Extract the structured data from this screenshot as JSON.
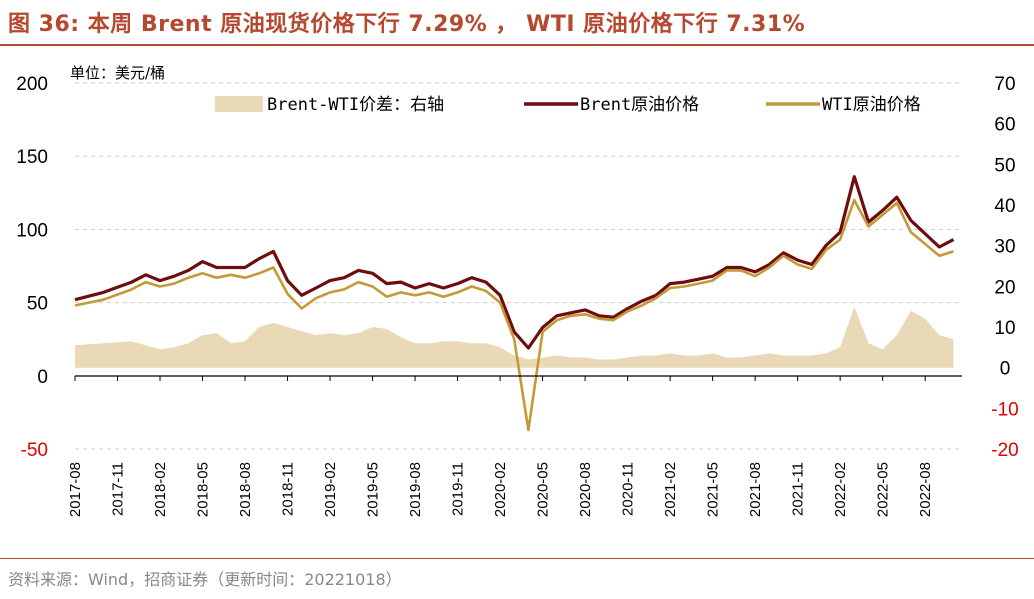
{
  "header": {
    "title": "图 36:  本周 Brent 原油现货价格下行 7.29% ， WTI 原油价格下行 7.31%"
  },
  "footer": {
    "source": "资料来源：Wind，招商证券（更新时间：20221018）"
  },
  "chart_data": {
    "type": "line",
    "unit_label": "单位：美元/桶",
    "x_tick_labels": [
      "2017-08",
      "2017-11",
      "2018-02",
      "2018-05",
      "2018-08",
      "2018-11",
      "2019-02",
      "2019-05",
      "2019-08",
      "2019-11",
      "2020-02",
      "2020-05",
      "2020-08",
      "2020-11",
      "2021-02",
      "2021-05",
      "2021-08",
      "2021-11",
      "2022-02",
      "2022-05",
      "2022-08"
    ],
    "y_left": {
      "ylim": [
        -50,
        200
      ],
      "ticks": [
        "200",
        "150",
        "100",
        "50",
        "0",
        "-50"
      ]
    },
    "y_right": {
      "ylim": [
        -20,
        70
      ],
      "ticks": [
        "70",
        "60",
        "50",
        "40",
        "30",
        "20",
        "10",
        "0",
        "-10",
        "-20"
      ]
    },
    "legend_position": "top",
    "grid": "horizontal dashed",
    "colors": {
      "brent": "#6e0d0d",
      "wti": "#c49a38",
      "spread": "#e9d9b6",
      "negative_tick": "#e00000"
    },
    "series": [
      {
        "name": "Brent原油价格",
        "axis": "left",
        "points": [
          [
            "2017-08",
            52
          ],
          [
            "2017-10",
            57
          ],
          [
            "2017-12",
            64
          ],
          [
            "2018-01",
            69
          ],
          [
            "2018-02",
            65
          ],
          [
            "2018-03",
            68
          ],
          [
            "2018-04",
            72
          ],
          [
            "2018-05",
            78
          ],
          [
            "2018-06",
            74
          ],
          [
            "2018-07",
            74
          ],
          [
            "2018-08",
            74
          ],
          [
            "2018-09",
            80
          ],
          [
            "2018-10",
            85
          ],
          [
            "2018-11",
            65
          ],
          [
            "2018-12",
            55
          ],
          [
            "2019-01",
            60
          ],
          [
            "2019-02",
            65
          ],
          [
            "2019-03",
            67
          ],
          [
            "2019-04",
            72
          ],
          [
            "2019-05",
            70
          ],
          [
            "2019-06",
            63
          ],
          [
            "2019-07",
            64
          ],
          [
            "2019-08",
            60
          ],
          [
            "2019-09",
            63
          ],
          [
            "2019-10",
            60
          ],
          [
            "2019-11",
            63
          ],
          [
            "2019-12",
            67
          ],
          [
            "2020-01",
            64
          ],
          [
            "2020-02",
            55
          ],
          [
            "2020-03",
            30
          ],
          [
            "2020-04",
            19
          ],
          [
            "2020-05",
            33
          ],
          [
            "2020-06",
            41
          ],
          [
            "2020-07",
            43
          ],
          [
            "2020-08",
            45
          ],
          [
            "2020-09",
            41
          ],
          [
            "2020-10",
            40
          ],
          [
            "2020-11",
            46
          ],
          [
            "2020-12",
            51
          ],
          [
            "2021-01",
            55
          ],
          [
            "2021-02",
            63
          ],
          [
            "2021-03",
            64
          ],
          [
            "2021-04",
            66
          ],
          [
            "2021-05",
            68
          ],
          [
            "2021-06",
            74
          ],
          [
            "2021-07",
            74
          ],
          [
            "2021-08",
            71
          ],
          [
            "2021-09",
            76
          ],
          [
            "2021-10",
            84
          ],
          [
            "2021-11",
            79
          ],
          [
            "2021-12",
            76
          ],
          [
            "2022-01",
            89
          ],
          [
            "2022-02",
            98
          ],
          [
            "2022-03",
            136
          ],
          [
            "2022-04",
            105
          ],
          [
            "2022-05",
            113
          ],
          [
            "2022-06",
            122
          ],
          [
            "2022-07",
            106
          ],
          [
            "2022-08",
            97
          ],
          [
            "2022-09",
            88
          ],
          [
            "2022-10",
            93
          ]
        ]
      },
      {
        "name": "WTI原油价格",
        "axis": "left",
        "points": [
          [
            "2017-08",
            48
          ],
          [
            "2017-10",
            52
          ],
          [
            "2017-12",
            59
          ],
          [
            "2018-01",
            64
          ],
          [
            "2018-02",
            61
          ],
          [
            "2018-03",
            63
          ],
          [
            "2018-04",
            67
          ],
          [
            "2018-05",
            70
          ],
          [
            "2018-06",
            67
          ],
          [
            "2018-07",
            69
          ],
          [
            "2018-08",
            67
          ],
          [
            "2018-09",
            70
          ],
          [
            "2018-10",
            74
          ],
          [
            "2018-11",
            56
          ],
          [
            "2018-12",
            46
          ],
          [
            "2019-01",
            53
          ],
          [
            "2019-02",
            57
          ],
          [
            "2019-03",
            59
          ],
          [
            "2019-04",
            64
          ],
          [
            "2019-05",
            61
          ],
          [
            "2019-06",
            54
          ],
          [
            "2019-07",
            57
          ],
          [
            "2019-08",
            55
          ],
          [
            "2019-09",
            57
          ],
          [
            "2019-10",
            54
          ],
          [
            "2019-11",
            57
          ],
          [
            "2019-12",
            61
          ],
          [
            "2020-01",
            58
          ],
          [
            "2020-02",
            50
          ],
          [
            "2020-03",
            25
          ],
          [
            "2020-04",
            -37
          ],
          [
            "2020-05",
            30
          ],
          [
            "2020-06",
            38
          ],
          [
            "2020-07",
            41
          ],
          [
            "2020-08",
            42
          ],
          [
            "2020-09",
            39
          ],
          [
            "2020-10",
            38
          ],
          [
            "2020-11",
            44
          ],
          [
            "2020-12",
            48
          ],
          [
            "2021-01",
            53
          ],
          [
            "2021-02",
            60
          ],
          [
            "2021-03",
            61
          ],
          [
            "2021-04",
            63
          ],
          [
            "2021-05",
            65
          ],
          [
            "2021-06",
            72
          ],
          [
            "2021-07",
            72
          ],
          [
            "2021-08",
            68
          ],
          [
            "2021-09",
            74
          ],
          [
            "2021-10",
            82
          ],
          [
            "2021-11",
            76
          ],
          [
            "2021-12",
            73
          ],
          [
            "2022-01",
            86
          ],
          [
            "2022-02",
            93
          ],
          [
            "2022-03",
            120
          ],
          [
            "2022-04",
            102
          ],
          [
            "2022-05",
            110
          ],
          [
            "2022-06",
            118
          ],
          [
            "2022-07",
            98
          ],
          [
            "2022-08",
            90
          ],
          [
            "2022-09",
            82
          ],
          [
            "2022-10",
            85
          ]
        ]
      },
      {
        "name": "Brent-WTI价差：右轴",
        "axis": "right",
        "render": "area",
        "points": [
          [
            "2017-08",
            5.5
          ],
          [
            "2017-10",
            6.0
          ],
          [
            "2017-12",
            6.5
          ],
          [
            "2018-01",
            5.5
          ],
          [
            "2018-02",
            4.5
          ],
          [
            "2018-03",
            5.0
          ],
          [
            "2018-04",
            6.0
          ],
          [
            "2018-05",
            8.0
          ],
          [
            "2018-06",
            8.5
          ],
          [
            "2018-07",
            6.0
          ],
          [
            "2018-08",
            6.5
          ],
          [
            "2018-09",
            10.0
          ],
          [
            "2018-10",
            11.0
          ],
          [
            "2018-11",
            10.0
          ],
          [
            "2018-12",
            9.0
          ],
          [
            "2019-01",
            8.0
          ],
          [
            "2019-02",
            8.5
          ],
          [
            "2019-03",
            8.0
          ],
          [
            "2019-04",
            8.5
          ],
          [
            "2019-05",
            10.0
          ],
          [
            "2019-06",
            9.5
          ],
          [
            "2019-07",
            7.5
          ],
          [
            "2019-08",
            6.0
          ],
          [
            "2019-09",
            6.0
          ],
          [
            "2019-10",
            6.5
          ],
          [
            "2019-11",
            6.5
          ],
          [
            "2019-12",
            6.0
          ],
          [
            "2020-01",
            6.0
          ],
          [
            "2020-02",
            5.0
          ],
          [
            "2020-03",
            3.0
          ],
          [
            "2020-04",
            2.0
          ],
          [
            "2020-05",
            2.5
          ],
          [
            "2020-06",
            3.0
          ],
          [
            "2020-07",
            2.5
          ],
          [
            "2020-08",
            2.5
          ],
          [
            "2020-09",
            2.0
          ],
          [
            "2020-10",
            2.0
          ],
          [
            "2020-11",
            2.5
          ],
          [
            "2020-12",
            3.0
          ],
          [
            "2021-01",
            3.0
          ],
          [
            "2021-02",
            3.5
          ],
          [
            "2021-03",
            3.0
          ],
          [
            "2021-04",
            3.0
          ],
          [
            "2021-05",
            3.5
          ],
          [
            "2021-06",
            2.5
          ],
          [
            "2021-07",
            2.5
          ],
          [
            "2021-08",
            3.0
          ],
          [
            "2021-09",
            3.5
          ],
          [
            "2021-10",
            3.0
          ],
          [
            "2021-11",
            3.0
          ],
          [
            "2021-12",
            3.0
          ],
          [
            "2022-01",
            3.5
          ],
          [
            "2022-02",
            5.0
          ],
          [
            "2022-03",
            15.0
          ],
          [
            "2022-04",
            6.0
          ],
          [
            "2022-05",
            4.5
          ],
          [
            "2022-06",
            8.0
          ],
          [
            "2022-07",
            14.0
          ],
          [
            "2022-08",
            12.0
          ],
          [
            "2022-09",
            8.0
          ],
          [
            "2022-10",
            7.0
          ]
        ]
      }
    ]
  }
}
